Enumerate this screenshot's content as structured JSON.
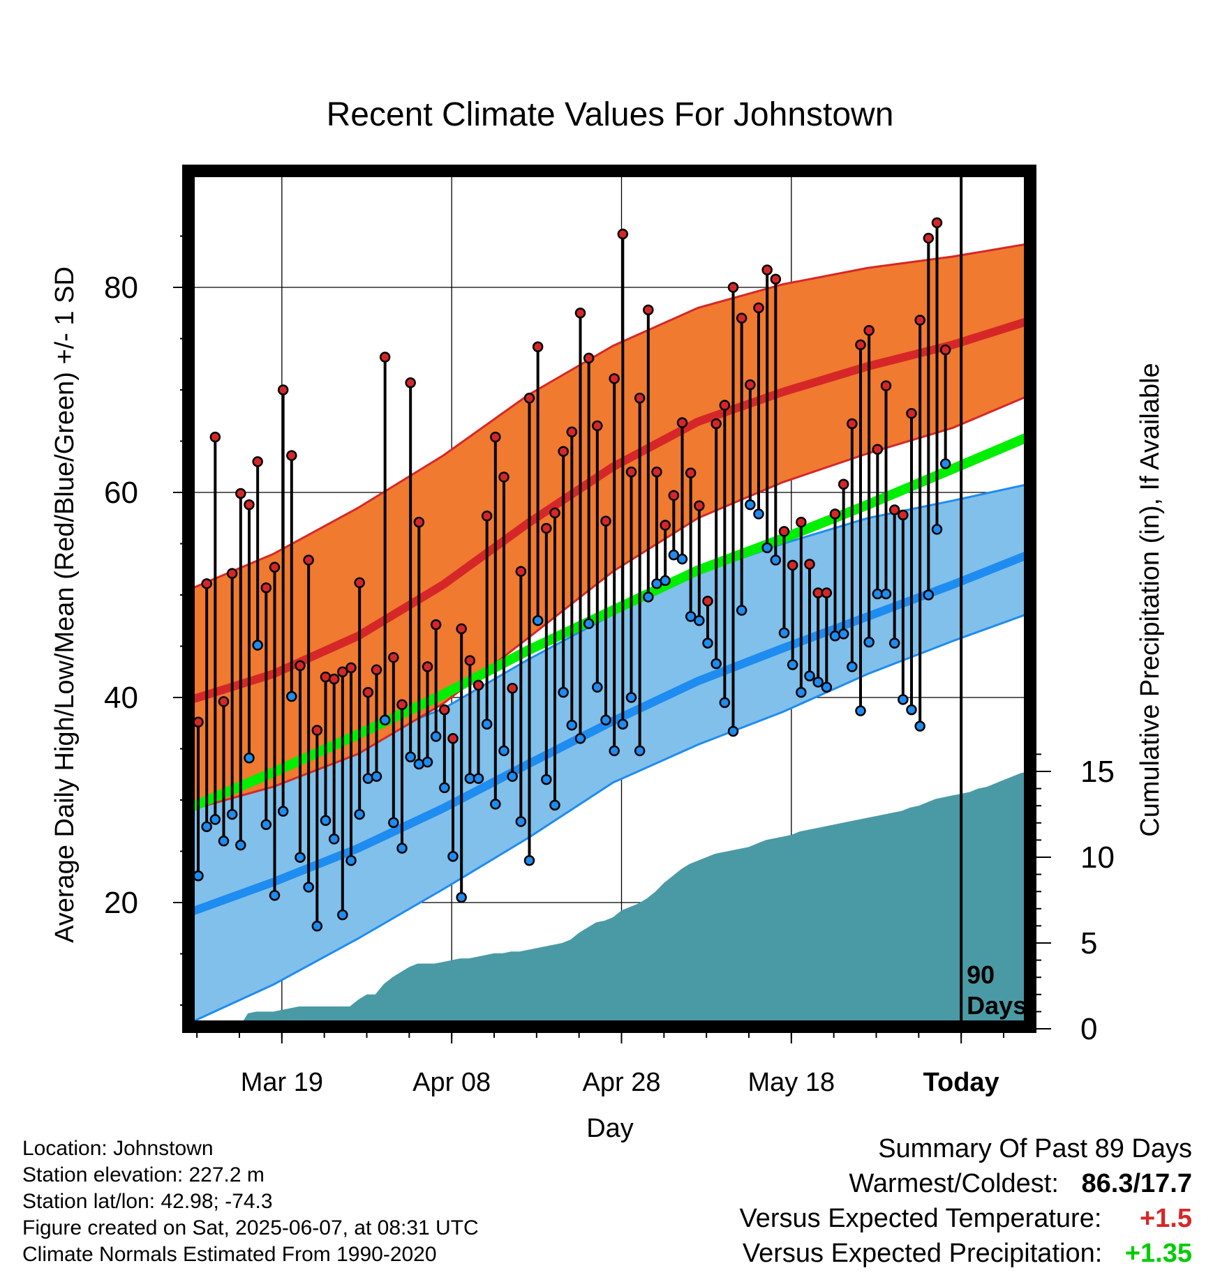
{
  "colors": {
    "high": "#d62728",
    "high_band": "#f07a30",
    "low": "#1e8cf0",
    "low_band": "#80c0ea",
    "mean": "#00ee00",
    "precip": "#4a9aa5",
    "high_point": "#d62728",
    "low_point": "#1e8cf0",
    "positive_temp": "#d62728",
    "positive_precip": "#00cc00"
  },
  "chart_data": {
    "type": "line",
    "title": "Recent Climate Values For Johnstown",
    "xlabel": "Day",
    "ylabel": "Average Daily High/Low/Mean (Red/Blue/Green) +/- 1 SD",
    "y2label": "Cumulative Precipitation (in), If Available",
    "xticks": [
      {
        "day": 11,
        "label": "Mar 19"
      },
      {
        "day": 31,
        "label": "Apr 08"
      },
      {
        "day": 51,
        "label": "Apr 28"
      },
      {
        "day": 71,
        "label": "May 18"
      },
      {
        "day": 91,
        "label": "Today"
      }
    ],
    "xlim": [
      0,
      100
    ],
    "ylim": [
      8,
      89
    ],
    "yticks": [
      20,
      40,
      60,
      80
    ],
    "y2lim": [
      0,
      38
    ],
    "y2ticks": [
      0,
      5,
      10,
      15
    ],
    "today_day": 91,
    "today_marker_label": [
      "90",
      "Days"
    ],
    "normals": {
      "days": [
        0,
        10,
        20,
        30,
        40,
        50,
        60,
        70,
        80,
        90,
        100
      ],
      "high_mean": [
        39.7,
        42.3,
        46.0,
        51.0,
        57.0,
        62.5,
        66.9,
        69.8,
        72.3,
        74.4,
        77.0
      ],
      "high_upper": [
        50.5,
        54.0,
        58.5,
        63.6,
        69.5,
        74.3,
        78.0,
        80.3,
        81.9,
        83.0,
        84.4
      ],
      "high_lower": [
        29.0,
        31.3,
        34.5,
        39.4,
        45.8,
        52.3,
        57.5,
        61.0,
        63.8,
        66.3,
        69.8
      ],
      "mean": [
        29.2,
        32.7,
        36.4,
        40.3,
        44.6,
        48.5,
        52.4,
        55.5,
        58.8,
        62.3,
        65.8
      ],
      "low_mean": [
        19.0,
        22.0,
        25.3,
        29.2,
        33.5,
        37.7,
        41.6,
        44.8,
        47.9,
        51.0,
        54.3
      ],
      "low_upper": [
        30.0,
        32.8,
        35.7,
        38.9,
        43.7,
        48.1,
        52.1,
        55.0,
        57.5,
        59.2,
        61.0
      ],
      "low_lower": [
        8.2,
        12.0,
        16.5,
        21.3,
        26.3,
        31.7,
        35.4,
        38.6,
        42.3,
        45.5,
        48.5
      ]
    },
    "highs": [
      37.6,
      51.1,
      65.4,
      39.6,
      52.1,
      59.9,
      58.8,
      63.0,
      50.7,
      52.7,
      70.0,
      63.6,
      43.1,
      53.4,
      36.8,
      42.0,
      41.8,
      42.5,
      42.9,
      51.2,
      40.5,
      42.7,
      73.2,
      43.9,
      39.3,
      70.7,
      57.1,
      43.0,
      47.1,
      38.8,
      36.0,
      46.7,
      43.6,
      41.2,
      57.7,
      65.4,
      61.5,
      40.9,
      52.3,
      69.2,
      74.2,
      56.5,
      58.0,
      64.0,
      65.9,
      77.5,
      73.1,
      66.5,
      57.2,
      71.1,
      85.2,
      62.0,
      69.2,
      77.8,
      62.0,
      56.8,
      59.7,
      66.8,
      61.9,
      58.7,
      49.4,
      66.7,
      68.5,
      80.0,
      77.0,
      70.5,
      78.0,
      81.7,
      80.8,
      56.2,
      52.9,
      57.1,
      53.0,
      50.2,
      50.2,
      57.9,
      60.8,
      66.7,
      74.4,
      75.8,
      64.2,
      70.4,
      58.3,
      57.8,
      67.7,
      76.8,
      84.8,
      86.3,
      73.9
    ],
    "lows": [
      22.6,
      27.4,
      28.1,
      26.0,
      28.6,
      25.6,
      34.1,
      45.1,
      27.6,
      20.7,
      28.9,
      40.1,
      24.4,
      21.5,
      17.7,
      28.0,
      26.2,
      18.8,
      24.1,
      28.6,
      32.1,
      32.3,
      37.8,
      27.8,
      25.3,
      34.2,
      33.5,
      33.7,
      36.2,
      31.2,
      24.5,
      20.5,
      32.1,
      32.1,
      37.4,
      29.6,
      34.8,
      32.3,
      27.9,
      24.1,
      47.5,
      32.0,
      29.5,
      40.5,
      37.3,
      36.0,
      47.2,
      41.0,
      37.8,
      34.8,
      37.4,
      40.0,
      34.8,
      49.8,
      51.1,
      51.4,
      53.9,
      53.5,
      47.9,
      47.5,
      45.3,
      43.3,
      39.5,
      36.7,
      48.5,
      58.8,
      57.9,
      54.6,
      53.4,
      46.3,
      43.2,
      40.5,
      42.1,
      41.5,
      41.0,
      46.0,
      46.2,
      43.0,
      38.7,
      45.4,
      50.1,
      50.1,
      45.3,
      39.8,
      38.8,
      37.2,
      50.0,
      56.4,
      62.8
    ],
    "precip_cumulative": [
      0,
      0,
      0,
      0,
      0,
      0,
      0.1,
      0.9,
      1.0,
      1.0,
      1.0,
      1.1,
      1.2,
      1.3,
      1.3,
      1.3,
      1.3,
      1.3,
      1.3,
      1.3,
      1.7,
      2.0,
      2.0,
      2.6,
      3.0,
      3.3,
      3.6,
      3.8,
      3.8,
      3.8,
      3.9,
      4.0,
      4.1,
      4.1,
      4.2,
      4.3,
      4.4,
      4.4,
      4.5,
      4.5,
      4.6,
      4.7,
      4.8,
      4.9,
      5.0,
      5.2,
      5.6,
      5.9,
      6.2,
      6.3,
      6.5,
      6.9,
      7.1,
      7.3,
      7.6,
      8.0,
      8.5,
      8.9,
      9.3,
      9.6,
      9.8,
      10.0,
      10.2,
      10.3,
      10.4,
      10.5,
      10.6,
      10.8,
      11.0,
      11.1,
      11.2,
      11.3,
      11.5,
      11.6,
      11.7,
      11.8,
      11.9,
      12.0,
      12.1,
      12.2,
      12.3,
      12.4,
      12.5,
      12.6,
      12.7,
      12.9,
      13.0,
      13.2,
      13.4,
      13.5,
      13.6,
      13.7,
      13.8,
      14.0,
      14.1,
      14.3,
      14.5,
      14.7,
      14.9,
      15.0,
      15.1
    ],
    "grid": true
  },
  "info": {
    "location": "Location: Johnstown",
    "elevation": "Station elevation: 227.2 m",
    "latlon": "Station lat/lon: 42.98; -74.3",
    "created": "Figure created on Sat, 2025-06-07, at 08:31 UTC",
    "normals": "Climate Normals Estimated From 1990-2020"
  },
  "summary": {
    "title": "Summary Of Past 89 Days",
    "warmest_label": "Warmest/Coldest:",
    "warmest_value": "86.3",
    "coldest_value": "17.7",
    "temp_label": "Versus Expected Temperature:",
    "temp_value": "+1.5",
    "precip_label": "Versus Expected Precipitation:",
    "precip_value": "+1.35"
  }
}
